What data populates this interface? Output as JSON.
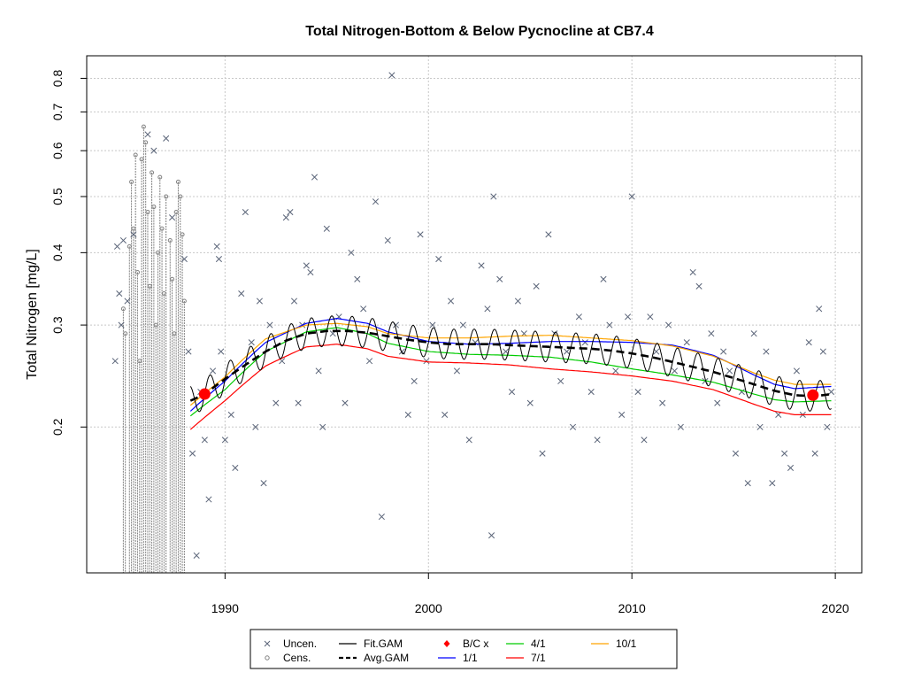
{
  "chart_data": {
    "type": "scatter",
    "title": "Total Nitrogen-Bottom & Below Pycnocline at CB7.4",
    "ylabel": "Total Nitrogen [mg/L]",
    "xlabel": "",
    "xlim": [
      1983.2,
      2021.3
    ],
    "ylim": [
      0.112,
      0.875
    ],
    "yscale": "log",
    "grid": true,
    "x_ticks": [
      1990,
      2000,
      2010,
      2020
    ],
    "y_ticks": [
      0.2,
      0.3,
      0.4,
      0.5,
      0.6,
      0.7,
      0.8
    ],
    "legend_placement": "bottom-outside",
    "colors": {
      "uncensored": "#5a6478",
      "censored": "#808080",
      "fit_gam": "#000000",
      "avg_gam": "#000000",
      "bc": "#ff0000",
      "ratio_1_1": "#0000ff",
      "ratio_4_1": "#00cc00",
      "ratio_7_1": "#ff0000",
      "ratio_10_1": "#ffa500"
    },
    "legend": [
      {
        "label": "Uncen.",
        "symbol": "x",
        "color": "#5a6478"
      },
      {
        "label": "Cens.",
        "symbol": "circle",
        "color": "#808080"
      },
      {
        "label": "Fit.GAM",
        "symbol": "line",
        "color": "#000000"
      },
      {
        "label": "Avg.GAM",
        "symbol": "dashed",
        "color": "#000000"
      },
      {
        "label": "B/C x",
        "symbol": "diamond",
        "color": "#ff0000"
      },
      {
        "label": "1/1",
        "symbol": "line",
        "color": "#0000ff"
      },
      {
        "label": "4/1",
        "symbol": "line",
        "color": "#00cc00"
      },
      {
        "label": "7/1",
        "symbol": "line",
        "color": "#ff0000"
      },
      {
        "label": "10/1",
        "symbol": "line",
        "color": "#ffa500"
      }
    ],
    "bc_points": [
      {
        "x": 1989.0,
        "y": 0.228
      },
      {
        "x": 2018.9,
        "y": 0.227
      }
    ],
    "avg_gam": {
      "x": [
        1988.3,
        1989,
        1990,
        1991,
        1992,
        1993,
        1994,
        1995,
        1996,
        1997,
        1998,
        1999,
        2000,
        2001,
        2002,
        2003,
        2004,
        2005,
        2006,
        2007,
        2008,
        2009,
        2010,
        2011,
        2012,
        2013,
        2014,
        2015,
        2016,
        2017,
        2018,
        2019,
        2019.8
      ],
      "y": [
        0.222,
        0.228,
        0.242,
        0.256,
        0.27,
        0.282,
        0.29,
        0.293,
        0.293,
        0.291,
        0.287,
        0.283,
        0.28,
        0.278,
        0.278,
        0.278,
        0.277,
        0.276,
        0.275,
        0.274,
        0.273,
        0.271,
        0.268,
        0.264,
        0.259,
        0.254,
        0.249,
        0.243,
        0.237,
        0.231,
        0.227,
        0.226,
        0.228
      ]
    },
    "seasonal_amplitude": 0.06,
    "series": [
      {
        "name": "1/1",
        "x": [
          1988.3,
          1990,
          1992,
          1994,
          1995.5,
          1997,
          1998,
          2000,
          2002,
          2004,
          2006,
          2008,
          2010,
          2012,
          2014,
          2016,
          2017,
          2018,
          2019.8
        ],
        "y": [
          0.213,
          0.24,
          0.28,
          0.302,
          0.308,
          0.302,
          0.292,
          0.281,
          0.278,
          0.279,
          0.281,
          0.281,
          0.28,
          0.277,
          0.266,
          0.246,
          0.237,
          0.233,
          0.235
        ]
      },
      {
        "name": "4/1",
        "x": [
          1988.3,
          1990,
          1992,
          1994,
          1995.5,
          1997,
          1998,
          2000,
          2002,
          2004,
          2006,
          2008,
          2010,
          2012,
          2014,
          2016,
          2017,
          2018,
          2019.8
        ],
        "y": [
          0.209,
          0.232,
          0.27,
          0.292,
          0.297,
          0.29,
          0.279,
          0.27,
          0.267,
          0.266,
          0.264,
          0.259,
          0.252,
          0.246,
          0.239,
          0.228,
          0.223,
          0.221,
          0.222
        ]
      },
      {
        "name": "7/1",
        "x": [
          1988.3,
          1990,
          1992,
          1994,
          1995.5,
          1997,
          1998,
          2000,
          2002,
          2004,
          2006,
          2008,
          2010,
          2012,
          2014,
          2016,
          2017,
          2018,
          2019.8
        ],
        "y": [
          0.198,
          0.222,
          0.255,
          0.275,
          0.278,
          0.273,
          0.265,
          0.259,
          0.258,
          0.256,
          0.252,
          0.249,
          0.245,
          0.24,
          0.232,
          0.219,
          0.213,
          0.21,
          0.21
        ]
      },
      {
        "name": "10/1",
        "x": [
          1988.3,
          1990,
          1992,
          1994,
          1995.5,
          1997,
          1998,
          2000,
          2002,
          2004,
          2006,
          2008,
          2010,
          2012,
          2014,
          2016,
          2017,
          2018,
          2019.8
        ],
        "y": [
          0.218,
          0.244,
          0.284,
          0.3,
          0.302,
          0.298,
          0.29,
          0.285,
          0.285,
          0.287,
          0.288,
          0.285,
          0.282,
          0.276,
          0.265,
          0.248,
          0.241,
          0.237,
          0.237
        ]
      }
    ],
    "censored": [
      {
        "x": 1985.0,
        "y": 0.32
      },
      {
        "x": 1985.1,
        "y": 0.29
      },
      {
        "x": 1985.3,
        "y": 0.41
      },
      {
        "x": 1985.4,
        "y": 0.53
      },
      {
        "x": 1985.5,
        "y": 0.44
      },
      {
        "x": 1985.6,
        "y": 0.59
      },
      {
        "x": 1985.7,
        "y": 0.37
      },
      {
        "x": 1985.8,
        "y": 0.26
      },
      {
        "x": 1985.9,
        "y": 0.58
      },
      {
        "x": 1986.0,
        "y": 0.66
      },
      {
        "x": 1986.1,
        "y": 0.62
      },
      {
        "x": 1986.2,
        "y": 0.47
      },
      {
        "x": 1986.3,
        "y": 0.35
      },
      {
        "x": 1986.4,
        "y": 0.55
      },
      {
        "x": 1986.5,
        "y": 0.48
      },
      {
        "x": 1986.6,
        "y": 0.3
      },
      {
        "x": 1986.7,
        "y": 0.4
      },
      {
        "x": 1986.8,
        "y": 0.54
      },
      {
        "x": 1986.9,
        "y": 0.44
      },
      {
        "x": 1987.0,
        "y": 0.34
      },
      {
        "x": 1987.1,
        "y": 0.5
      },
      {
        "x": 1987.3,
        "y": 0.42
      },
      {
        "x": 1987.4,
        "y": 0.36
      },
      {
        "x": 1987.5,
        "y": 0.29
      },
      {
        "x": 1987.6,
        "y": 0.47
      },
      {
        "x": 1987.7,
        "y": 0.53
      },
      {
        "x": 1987.8,
        "y": 0.5
      },
      {
        "x": 1987.9,
        "y": 0.43
      },
      {
        "x": 1988.0,
        "y": 0.33
      }
    ],
    "uncensored": [
      {
        "x": 1984.6,
        "y": 0.26
      },
      {
        "x": 1984.7,
        "y": 0.41
      },
      {
        "x": 1984.8,
        "y": 0.34
      },
      {
        "x": 1984.9,
        "y": 0.3
      },
      {
        "x": 1985.0,
        "y": 0.42
      },
      {
        "x": 1985.2,
        "y": 0.33
      },
      {
        "x": 1985.5,
        "y": 0.43
      },
      {
        "x": 1986.2,
        "y": 0.64
      },
      {
        "x": 1986.5,
        "y": 0.6
      },
      {
        "x": 1987.1,
        "y": 0.63
      },
      {
        "x": 1987.4,
        "y": 0.46
      },
      {
        "x": 1988.0,
        "y": 0.39
      },
      {
        "x": 1988.2,
        "y": 0.27
      },
      {
        "x": 1988.4,
        "y": 0.18
      },
      {
        "x": 1988.6,
        "y": 0.12
      },
      {
        "x": 1988.8,
        "y": 0.23
      },
      {
        "x": 1989.0,
        "y": 0.19
      },
      {
        "x": 1989.2,
        "y": 0.15
      },
      {
        "x": 1989.4,
        "y": 0.25
      },
      {
        "x": 1989.6,
        "y": 0.41
      },
      {
        "x": 1989.7,
        "y": 0.39
      },
      {
        "x": 1989.8,
        "y": 0.27
      },
      {
        "x": 1990.0,
        "y": 0.19
      },
      {
        "x": 1990.3,
        "y": 0.21
      },
      {
        "x": 1990.5,
        "y": 0.17
      },
      {
        "x": 1990.8,
        "y": 0.34
      },
      {
        "x": 1991.0,
        "y": 0.47
      },
      {
        "x": 1991.3,
        "y": 0.28
      },
      {
        "x": 1991.5,
        "y": 0.2
      },
      {
        "x": 1991.7,
        "y": 0.33
      },
      {
        "x": 1991.9,
        "y": 0.16
      },
      {
        "x": 1992.2,
        "y": 0.3
      },
      {
        "x": 1992.5,
        "y": 0.22
      },
      {
        "x": 1992.8,
        "y": 0.26
      },
      {
        "x": 1993.0,
        "y": 0.46
      },
      {
        "x": 1993.2,
        "y": 0.47
      },
      {
        "x": 1993.4,
        "y": 0.33
      },
      {
        "x": 1993.6,
        "y": 0.22
      },
      {
        "x": 1993.8,
        "y": 0.3
      },
      {
        "x": 1994.0,
        "y": 0.38
      },
      {
        "x": 1994.2,
        "y": 0.37
      },
      {
        "x": 1994.4,
        "y": 0.54
      },
      {
        "x": 1994.6,
        "y": 0.25
      },
      {
        "x": 1994.8,
        "y": 0.2
      },
      {
        "x": 1995.0,
        "y": 0.44
      },
      {
        "x": 1995.3,
        "y": 0.29
      },
      {
        "x": 1995.6,
        "y": 0.31
      },
      {
        "x": 1995.9,
        "y": 0.22
      },
      {
        "x": 1996.2,
        "y": 0.4
      },
      {
        "x": 1996.5,
        "y": 0.36
      },
      {
        "x": 1996.8,
        "y": 0.32
      },
      {
        "x": 1997.1,
        "y": 0.26
      },
      {
        "x": 1997.4,
        "y": 0.49
      },
      {
        "x": 1997.7,
        "y": 0.14
      },
      {
        "x": 1998.0,
        "y": 0.42
      },
      {
        "x": 1998.2,
        "y": 0.81
      },
      {
        "x": 1998.4,
        "y": 0.3
      },
      {
        "x": 1998.7,
        "y": 0.27
      },
      {
        "x": 1999.0,
        "y": 0.21
      },
      {
        "x": 1999.3,
        "y": 0.24
      },
      {
        "x": 1999.6,
        "y": 0.43
      },
      {
        "x": 1999.9,
        "y": 0.26
      },
      {
        "x": 2000.2,
        "y": 0.3
      },
      {
        "x": 2000.5,
        "y": 0.39
      },
      {
        "x": 2000.8,
        "y": 0.21
      },
      {
        "x": 2001.1,
        "y": 0.33
      },
      {
        "x": 2001.4,
        "y": 0.25
      },
      {
        "x": 2001.7,
        "y": 0.3
      },
      {
        "x": 2002.0,
        "y": 0.19
      },
      {
        "x": 2002.3,
        "y": 0.28
      },
      {
        "x": 2002.6,
        "y": 0.38
      },
      {
        "x": 2002.9,
        "y": 0.32
      },
      {
        "x": 2003.1,
        "y": 0.13
      },
      {
        "x": 2003.2,
        "y": 0.5
      },
      {
        "x": 2003.5,
        "y": 0.36
      },
      {
        "x": 2003.8,
        "y": 0.27
      },
      {
        "x": 2004.1,
        "y": 0.23
      },
      {
        "x": 2004.4,
        "y": 0.33
      },
      {
        "x": 2004.7,
        "y": 0.29
      },
      {
        "x": 2005.0,
        "y": 0.22
      },
      {
        "x": 2005.3,
        "y": 0.35
      },
      {
        "x": 2005.6,
        "y": 0.18
      },
      {
        "x": 2005.9,
        "y": 0.43
      },
      {
        "x": 2006.2,
        "y": 0.29
      },
      {
        "x": 2006.5,
        "y": 0.24
      },
      {
        "x": 2006.8,
        "y": 0.27
      },
      {
        "x": 2007.1,
        "y": 0.2
      },
      {
        "x": 2007.4,
        "y": 0.31
      },
      {
        "x": 2007.7,
        "y": 0.28
      },
      {
        "x": 2008.0,
        "y": 0.23
      },
      {
        "x": 2008.3,
        "y": 0.19
      },
      {
        "x": 2008.6,
        "y": 0.36
      },
      {
        "x": 2008.9,
        "y": 0.3
      },
      {
        "x": 2009.2,
        "y": 0.25
      },
      {
        "x": 2009.5,
        "y": 0.21
      },
      {
        "x": 2009.8,
        "y": 0.31
      },
      {
        "x": 2010.0,
        "y": 0.5
      },
      {
        "x": 2010.3,
        "y": 0.23
      },
      {
        "x": 2010.6,
        "y": 0.19
      },
      {
        "x": 2010.9,
        "y": 0.31
      },
      {
        "x": 2011.2,
        "y": 0.27
      },
      {
        "x": 2011.5,
        "y": 0.22
      },
      {
        "x": 2011.8,
        "y": 0.3
      },
      {
        "x": 2012.1,
        "y": 0.25
      },
      {
        "x": 2012.4,
        "y": 0.2
      },
      {
        "x": 2012.7,
        "y": 0.28
      },
      {
        "x": 2013.0,
        "y": 0.37
      },
      {
        "x": 2013.3,
        "y": 0.35
      },
      {
        "x": 2013.6,
        "y": 0.24
      },
      {
        "x": 2013.9,
        "y": 0.29
      },
      {
        "x": 2014.2,
        "y": 0.22
      },
      {
        "x": 2014.5,
        "y": 0.27
      },
      {
        "x": 2014.8,
        "y": 0.25
      },
      {
        "x": 2015.1,
        "y": 0.18
      },
      {
        "x": 2015.4,
        "y": 0.23
      },
      {
        "x": 2015.7,
        "y": 0.16
      },
      {
        "x": 2016.0,
        "y": 0.29
      },
      {
        "x": 2016.3,
        "y": 0.2
      },
      {
        "x": 2016.6,
        "y": 0.27
      },
      {
        "x": 2016.9,
        "y": 0.16
      },
      {
        "x": 2017.2,
        "y": 0.21
      },
      {
        "x": 2017.5,
        "y": 0.18
      },
      {
        "x": 2017.8,
        "y": 0.17
      },
      {
        "x": 2018.1,
        "y": 0.25
      },
      {
        "x": 2018.4,
        "y": 0.21
      },
      {
        "x": 2018.7,
        "y": 0.28
      },
      {
        "x": 2019.0,
        "y": 0.18
      },
      {
        "x": 2019.2,
        "y": 0.32
      },
      {
        "x": 2019.4,
        "y": 0.27
      },
      {
        "x": 2019.6,
        "y": 0.2
      },
      {
        "x": 2019.8,
        "y": 0.23
      }
    ]
  }
}
